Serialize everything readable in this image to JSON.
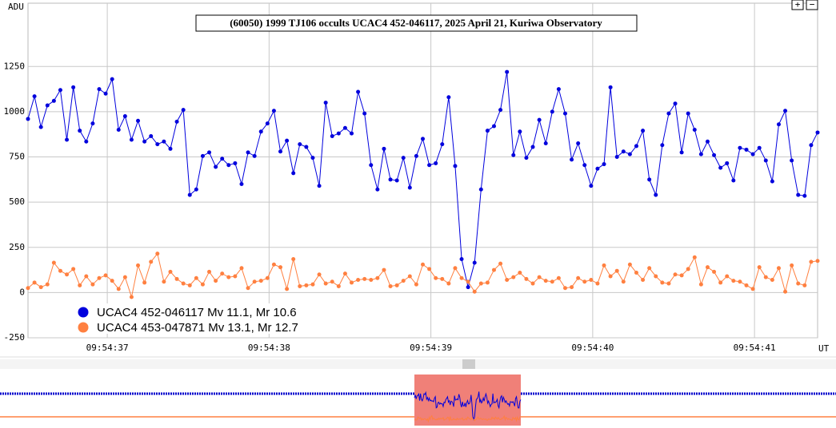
{
  "chart_data": {
    "type": "line",
    "title": "(60050) 1999 TJ106 occults UCAC4 452-046117, 2025 April 21, Kuriwa Observatory",
    "y_label": "ADU",
    "x_label": "UT",
    "xlim": [
      36.51,
      41.39
    ],
    "ylim": [
      -250,
      1600
    ],
    "xticks": [
      {
        "value": 37,
        "label": "09:54:37"
      },
      {
        "value": 38,
        "label": "09:54:38"
      },
      {
        "value": 39,
        "label": "09:54:39"
      },
      {
        "value": 40,
        "label": "09:54:40"
      },
      {
        "value": 41,
        "label": "09:54:41"
      }
    ],
    "yticks": [
      -250,
      0,
      250,
      500,
      750,
      1000,
      1250
    ],
    "grid": true,
    "legend": "bottom-left",
    "x": [
      36.51,
      36.55,
      36.59,
      36.63,
      36.67,
      36.71,
      36.75,
      36.79,
      36.83,
      36.87,
      36.91,
      36.95,
      36.99,
      37.03,
      37.07,
      37.11,
      37.15,
      37.19,
      37.23,
      37.27,
      37.31,
      37.35,
      37.39,
      37.43,
      37.47,
      37.51,
      37.55,
      37.59,
      37.63,
      37.67,
      37.71,
      37.75,
      37.79,
      37.83,
      37.87,
      37.91,
      37.95,
      37.99,
      38.03,
      38.07,
      38.11,
      38.15,
      38.19,
      38.23,
      38.27,
      38.31,
      38.35,
      38.39,
      38.43,
      38.47,
      38.51,
      38.55,
      38.59,
      38.63,
      38.67,
      38.71,
      38.75,
      38.79,
      38.83,
      38.87,
      38.91,
      38.95,
      38.99,
      39.03,
      39.07,
      39.11,
      39.15,
      39.19,
      39.23,
      39.27,
      39.31,
      39.35,
      39.39,
      39.43,
      39.47,
      39.51,
      39.55,
      39.59,
      39.63,
      39.67,
      39.71,
      39.75,
      39.79,
      39.83,
      39.87,
      39.91,
      39.95,
      39.99,
      40.03,
      40.07,
      40.11,
      40.15,
      40.19,
      40.23,
      40.27,
      40.31,
      40.35,
      40.39,
      40.43,
      40.47,
      40.51,
      40.55,
      40.59,
      40.63,
      40.67,
      40.71,
      40.75,
      40.79,
      40.83,
      40.87,
      40.91,
      40.95,
      40.99,
      41.03,
      41.07,
      41.11,
      41.15,
      41.19,
      41.23,
      41.27,
      41.31,
      41.35,
      41.39
    ],
    "series": [
      {
        "name": "UCAC4 452-046117 Mv 11.1, Mr 10.6",
        "color": "#0000dd",
        "values": [
          960,
          1085,
          915,
          1035,
          1060,
          1120,
          845,
          1135,
          895,
          835,
          935,
          1125,
          1100,
          1180,
          900,
          975,
          845,
          950,
          835,
          865,
          820,
          835,
          795,
          945,
          1010,
          540,
          570,
          755,
          775,
          695,
          740,
          705,
          715,
          600,
          775,
          755,
          890,
          935,
          1005,
          780,
          840,
          660,
          820,
          805,
          745,
          590,
          1050,
          865,
          880,
          910,
          880,
          1110,
          990,
          705,
          570,
          795,
          625,
          620,
          745,
          580,
          755,
          850,
          705,
          715,
          820,
          1080,
          700,
          185,
          30,
          165,
          570,
          895,
          920,
          1010,
          1220,
          760,
          890,
          745,
          805,
          955,
          825,
          1000,
          1125,
          990,
          735,
          825,
          705,
          590,
          685,
          710,
          1135,
          750,
          780,
          765,
          810,
          895,
          625,
          540,
          815,
          990,
          1045,
          775,
          990,
          900,
          765,
          835,
          760,
          690,
          715,
          620,
          800,
          790,
          765,
          800,
          730,
          615,
          930,
          1005,
          730,
          540,
          535,
          815,
          885
        ]
      },
      {
        "name": "UCAC4 453-047871 Mv 13.1, Mr 12.7",
        "color": "#ff8040",
        "values": [
          25,
          55,
          30,
          45,
          165,
          120,
          100,
          130,
          40,
          90,
          45,
          80,
          95,
          65,
          20,
          85,
          -25,
          150,
          55,
          170,
          215,
          60,
          115,
          75,
          50,
          40,
          80,
          45,
          115,
          65,
          105,
          85,
          90,
          135,
          25,
          60,
          65,
          80,
          155,
          140,
          20,
          185,
          35,
          40,
          45,
          100,
          50,
          60,
          35,
          105,
          55,
          70,
          75,
          70,
          80,
          125,
          35,
          40,
          65,
          90,
          45,
          155,
          130,
          80,
          75,
          50,
          135,
          80,
          60,
          5,
          50,
          55,
          125,
          160,
          70,
          85,
          110,
          75,
          50,
          85,
          65,
          60,
          80,
          25,
          30,
          80,
          60,
          70,
          50,
          150,
          90,
          120,
          60,
          155,
          110,
          70,
          135,
          90,
          55,
          50,
          100,
          95,
          130,
          195,
          45,
          140,
          115,
          55,
          90,
          65,
          60,
          40,
          20,
          140,
          85,
          70,
          135,
          5,
          150,
          50,
          40,
          170,
          175
        ]
      }
    ]
  },
  "ui": {
    "zoom_in": "+",
    "zoom_out": "−"
  }
}
